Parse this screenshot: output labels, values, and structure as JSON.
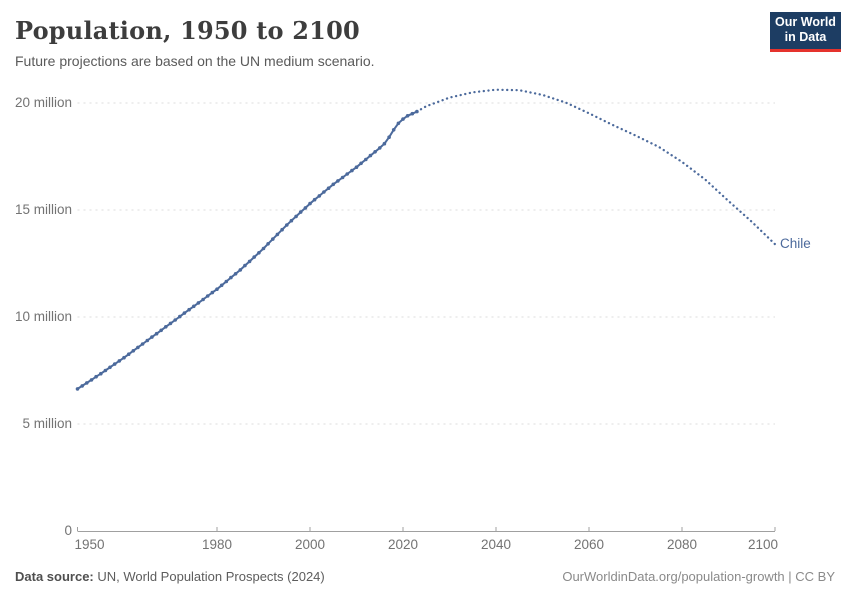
{
  "header": {
    "title": "Population, 1950 to 2100",
    "subtitle": "Future projections are based on the UN medium scenario.",
    "logo_line1": "Our World",
    "logo_line2": "in Data"
  },
  "footer": {
    "source_label": "Data source:",
    "source_text": " UN, World Population Prospects (2024)",
    "link_text": "OurWorldinData.org/population-growth | CC BY"
  },
  "colors": {
    "series": "#4c6a9c",
    "end_label": "#4c6a9c",
    "grid": "#dcdcdc",
    "axis": "#a0a0a0",
    "logo_bg": "#1d3d63",
    "logo_red": "#e5332d"
  },
  "chart_data": {
    "type": "line",
    "title": "Population, 1950 to 2100",
    "subtitle": "Future projections are based on the UN medium scenario.",
    "entity": "Chile",
    "end_label": "Chile",
    "unit": "million people",
    "xlim": [
      1950,
      2100
    ],
    "ylim": [
      0,
      21
    ],
    "grid": "dashed horizontal",
    "legend_position": "end-of-line label",
    "y_ticks": [
      {
        "value": 20,
        "label": "20 million"
      },
      {
        "value": 15,
        "label": "15 million"
      },
      {
        "value": 10,
        "label": "10 million"
      },
      {
        "value": 5,
        "label": "5 million"
      },
      {
        "value": 0,
        "label": "0"
      }
    ],
    "x_ticks": [
      {
        "year": 1950,
        "label": "1950"
      },
      {
        "year": 1980,
        "label": "1980"
      },
      {
        "year": 2000,
        "label": "2000"
      },
      {
        "year": 2020,
        "label": "2020"
      },
      {
        "year": 2040,
        "label": "2040"
      },
      {
        "year": 2060,
        "label": "2060"
      },
      {
        "year": 2080,
        "label": "2080"
      },
      {
        "year": 2100,
        "label": "2100"
      }
    ],
    "series": [
      {
        "name": "Chile — historical estimates",
        "style": "solid",
        "markers": true,
        "points": [
          [
            1950,
            6.64
          ],
          [
            1951,
            6.78
          ],
          [
            1952,
            6.92
          ],
          [
            1953,
            7.06
          ],
          [
            1954,
            7.21
          ],
          [
            1955,
            7.35
          ],
          [
            1956,
            7.5
          ],
          [
            1957,
            7.65
          ],
          [
            1958,
            7.8
          ],
          [
            1959,
            7.95
          ],
          [
            1960,
            8.1
          ],
          [
            1961,
            8.26
          ],
          [
            1962,
            8.42
          ],
          [
            1963,
            8.58
          ],
          [
            1964,
            8.74
          ],
          [
            1965,
            8.9
          ],
          [
            1966,
            9.06
          ],
          [
            1967,
            9.22
          ],
          [
            1968,
            9.38
          ],
          [
            1969,
            9.54
          ],
          [
            1970,
            9.7
          ],
          [
            1971,
            9.86
          ],
          [
            1972,
            10.02
          ],
          [
            1973,
            10.18
          ],
          [
            1974,
            10.34
          ],
          [
            1975,
            10.5
          ],
          [
            1976,
            10.66
          ],
          [
            1977,
            10.82
          ],
          [
            1978,
            10.98
          ],
          [
            1979,
            11.14
          ],
          [
            1980,
            11.3
          ],
          [
            1981,
            11.48
          ],
          [
            1982,
            11.66
          ],
          [
            1983,
            11.84
          ],
          [
            1984,
            12.02
          ],
          [
            1985,
            12.2
          ],
          [
            1986,
            12.4
          ],
          [
            1987,
            12.6
          ],
          [
            1988,
            12.8
          ],
          [
            1989,
            13.0
          ],
          [
            1990,
            13.2
          ],
          [
            1991,
            13.42
          ],
          [
            1992,
            13.64
          ],
          [
            1993,
            13.86
          ],
          [
            1994,
            14.08
          ],
          [
            1995,
            14.3
          ],
          [
            1996,
            14.5
          ],
          [
            1997,
            14.7
          ],
          [
            1998,
            14.9
          ],
          [
            1999,
            15.1
          ],
          [
            2000,
            15.3
          ],
          [
            2001,
            15.48
          ],
          [
            2002,
            15.66
          ],
          [
            2003,
            15.84
          ],
          [
            2004,
            16.02
          ],
          [
            2005,
            16.2
          ],
          [
            2006,
            16.36
          ],
          [
            2007,
            16.52
          ],
          [
            2008,
            16.68
          ],
          [
            2009,
            16.84
          ],
          [
            2010,
            17.0
          ],
          [
            2011,
            17.18
          ],
          [
            2012,
            17.36
          ],
          [
            2013,
            17.54
          ],
          [
            2014,
            17.72
          ],
          [
            2015,
            17.9
          ],
          [
            2016,
            18.1
          ],
          [
            2017,
            18.4
          ],
          [
            2018,
            18.75
          ],
          [
            2019,
            19.05
          ],
          [
            2020,
            19.25
          ],
          [
            2021,
            19.4
          ],
          [
            2022,
            19.5
          ],
          [
            2023,
            19.6
          ]
        ]
      },
      {
        "name": "Chile — UN medium projection",
        "style": "dotted",
        "markers": false,
        "points": [
          [
            2023,
            19.6
          ],
          [
            2025,
            19.85
          ],
          [
            2030,
            20.25
          ],
          [
            2035,
            20.5
          ],
          [
            2040,
            20.62
          ],
          [
            2045,
            20.6
          ],
          [
            2050,
            20.38
          ],
          [
            2055,
            20.02
          ],
          [
            2060,
            19.52
          ],
          [
            2065,
            18.98
          ],
          [
            2070,
            18.48
          ],
          [
            2075,
            17.95
          ],
          [
            2080,
            17.25
          ],
          [
            2085,
            16.42
          ],
          [
            2090,
            15.42
          ],
          [
            2095,
            14.45
          ],
          [
            2100,
            13.4
          ]
        ]
      }
    ]
  }
}
